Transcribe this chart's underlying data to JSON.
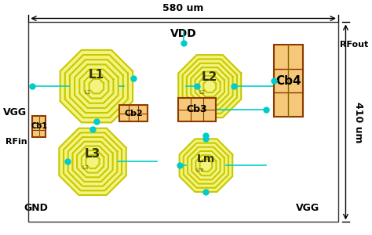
{
  "fig_width": 4.74,
  "fig_height": 3.0,
  "bg_color": "#ffffff",
  "title_580": "580 um",
  "title_410": "410 um",
  "vdd_label": "VDD",
  "vgg_label_left": "VGG",
  "vgg_label_right": "VGG",
  "gnd_label": "GND",
  "rfin_label": "RFin",
  "rfout_label": "RFout",
  "l1_label": "L1",
  "l2_label": "L2",
  "l3_label": "L3",
  "lm_label": "Lm",
  "cb1_label": "Cb1",
  "cb2_label": "Cb2",
  "cb3_label": "Cb3",
  "cb4_label": "Cb4",
  "inductor_color": "#e8e800",
  "inductor_edge": "#c8c800",
  "wire_color": "#00cccc",
  "cap_fill": "#f5c87a",
  "cap_edge": "#8B3A00",
  "dot_color": "#00cccc",
  "dim_color": "#000000",
  "label_color": "#000000"
}
